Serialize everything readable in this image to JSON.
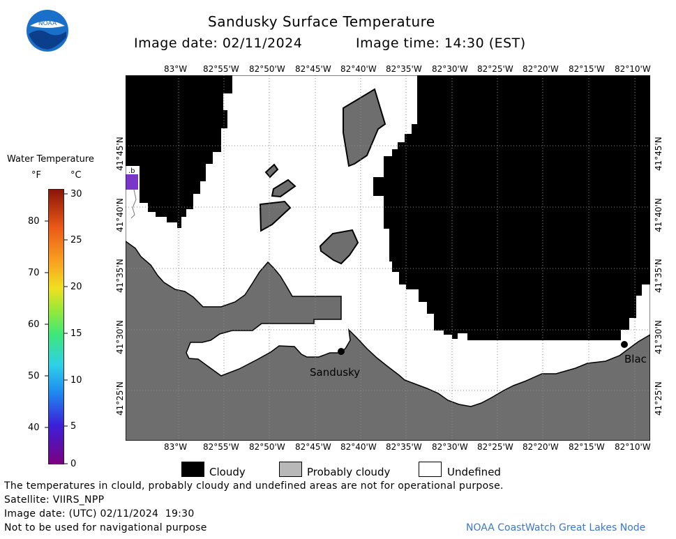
{
  "header": {
    "title": "Sandusky Surface Temperature",
    "image_date_label": "Image date: 02/11/2024",
    "image_time_label": "Image time: 14:30 (EST)"
  },
  "logo": {
    "text": "NOAA"
  },
  "legend": {
    "title": "Water Temperature",
    "unit_f": "°F",
    "unit_c": "°C",
    "f_ticks": [
      "80",
      "70",
      "60",
      "50",
      "40"
    ],
    "c_ticks": [
      "30",
      "25",
      "20",
      "15",
      "10",
      "5",
      "0"
    ]
  },
  "map": {
    "lon_labels": [
      "83°W",
      "82°55'W",
      "82°50'W",
      "82°45'W",
      "82°40'W",
      "82°35'W",
      "82°30'W",
      "82°25'W",
      "82°20'W",
      "82°15'W",
      "82°10'W"
    ],
    "lat_labels": [
      "41°45'N",
      "41°40'N",
      "41°35'N",
      "41°30'N",
      "41°25'N"
    ],
    "places": {
      "sandusky": "Sandusky",
      "blac": "Blac"
    },
    "colors": {
      "cloudy": "#000000",
      "probably_cloudy": "#6e6e6e",
      "undefined": "#ffffff"
    }
  },
  "key": {
    "cloudy": "Cloudy",
    "probably_cloudy": "Probably cloudy",
    "undefined": "Undefined"
  },
  "footer": {
    "disclaimer": "The temperatures in clould, probably cloudy and undefined areas are not for operational purpose.",
    "satellite": "Satellite: VIIRS_NPP",
    "utc_date": "Image date: (UTC) 02/11/2024  19:30",
    "nav_warning": "Not to be used for navigational purpose",
    "credit": "NOAA CoastWatch Great Lakes Node"
  }
}
